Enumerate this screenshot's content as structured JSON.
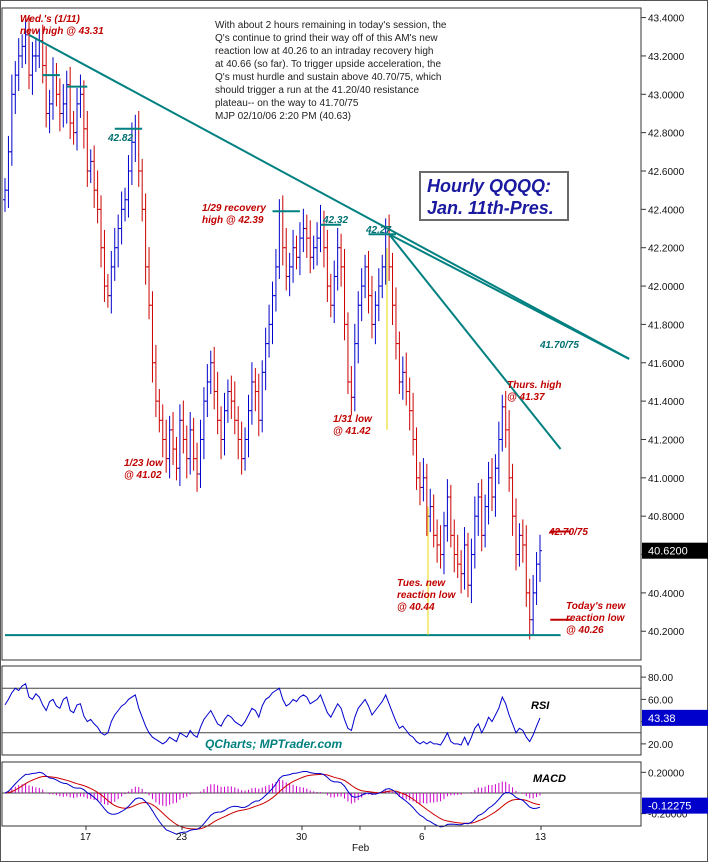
{
  "commentary": [
    "With about 2 hours remaining in today's session, the",
    "Q's continue to grind their way off of this AM's new",
    "reaction low at 40.26 to an intraday recovery high",
    "at 40.66 (so far). To trigger upside acceleration, the",
    "Q's must hurdle and sustain above 40.70/75, which",
    "should trigger a run at the 41.20/40 resistance",
    "plateau-- on the way to 41.70/75",
    "MJP  02/10/06  2:20 PM  (40.63)"
  ],
  "title_box": [
    "Hourly QQQQ:",
    "Jan. 11th-Pres."
  ],
  "watermark": "QCharts; MPTrader.com",
  "colors": {
    "up": "#0000cc",
    "down": "#cc0000",
    "trend": "#008080",
    "rsi": "#0000cc",
    "macd": "#0000cc",
    "signal": "#cc0000",
    "hist": "#cc00cc",
    "price_box": "#0000cc"
  },
  "chart_data": [
    {
      "type": "candlestick",
      "y_axis_labels": [
        "43.4000",
        "43.2000",
        "43.0000",
        "42.8000",
        "42.6000",
        "42.4000",
        "42.2000",
        "42.0000",
        "41.8000",
        "41.6000",
        "41.4000",
        "41.2000",
        "41.0000",
        "40.8000",
        "40.6000",
        "40.4000",
        "40.2000"
      ],
      "ylim": [
        40.05,
        43.45
      ],
      "x_tick_labels": [
        "17",
        "23",
        "30",
        "Feb",
        "6",
        "13"
      ],
      "last_price": "40.6200",
      "series_close": [
        42.5,
        42.7,
        43.0,
        43.1,
        43.2,
        43.25,
        43.31,
        43.1,
        43.2,
        43.2,
        43.28,
        43.15,
        42.9,
        42.95,
        43.1,
        43.0,
        42.9,
        42.95,
        43.05,
        42.85,
        42.8,
        42.95,
        43.0,
        42.82,
        42.6,
        42.65,
        42.5,
        42.4,
        42.2,
        42.0,
        41.95,
        42.1,
        42.2,
        42.3,
        42.4,
        42.45,
        42.6,
        42.75,
        42.82,
        42.6,
        42.4,
        42.1,
        41.9,
        41.6,
        41.4,
        41.3,
        41.2,
        41.1,
        41.25,
        41.15,
        41.05,
        41.3,
        41.2,
        41.1,
        41.25,
        41.1,
        41.02,
        41.2,
        41.4,
        41.5,
        41.6,
        41.45,
        41.3,
        41.2,
        41.35,
        41.45,
        41.4,
        41.3,
        41.2,
        41.1,
        41.2,
        41.35,
        41.5,
        41.45,
        41.3,
        41.55,
        41.7,
        41.8,
        41.95,
        42.1,
        42.39,
        42.2,
        42.05,
        42.1,
        42.2,
        42.15,
        42.25,
        42.3,
        42.25,
        42.15,
        42.2,
        42.25,
        42.32,
        42.2,
        42.0,
        41.9,
        42.05,
        42.2,
        42.1,
        41.8,
        41.5,
        41.42,
        41.7,
        41.9,
        42.0,
        42.1,
        41.95,
        41.8,
        41.9,
        42.0,
        42.1,
        42.27,
        42.1,
        41.9,
        41.7,
        41.5,
        41.55,
        41.45,
        41.35,
        41.2,
        41.0,
        40.95,
        41.0,
        40.8,
        40.85,
        40.7,
        40.65,
        40.6,
        40.75,
        40.9,
        40.7,
        40.6,
        40.55,
        40.5,
        40.65,
        40.44,
        40.6,
        40.8,
        40.9,
        40.7,
        40.85,
        41.0,
        40.9,
        41.05,
        41.2,
        41.37,
        41.25,
        41.0,
        40.8,
        40.6,
        40.7,
        40.65,
        40.4,
        40.26,
        40.4,
        40.55,
        40.62
      ],
      "series_range": [
        0.12
      ],
      "trendlines": [
        {
          "from": [
            7,
            43.31
          ],
          "to": [
            182,
            41.62
          ]
        },
        {
          "from": [
            112,
            42.27
          ],
          "to": [
            182,
            41.62
          ]
        },
        {
          "from": [
            112,
            42.27
          ],
          "to": [
            162,
            41.15
          ]
        }
      ],
      "levels": [
        {
          "value": 40.18,
          "from": 0,
          "to": 162
        },
        {
          "value": 43.1,
          "from": 11,
          "to": 16
        },
        {
          "value": 43.04,
          "from": 18,
          "to": 24
        },
        {
          "value": 42.82,
          "from": 32,
          "to": 40
        },
        {
          "value": 42.39,
          "from": 78,
          "to": 86
        },
        {
          "value": 42.32,
          "from": 92,
          "to": 98
        },
        {
          "value": 42.27,
          "from": 106,
          "to": 114
        },
        {
          "value": 40.72,
          "from": 159,
          "to": 165
        },
        {
          "value": 40.26,
          "from": 159,
          "to": 165
        }
      ],
      "annotations": [
        {
          "lines": [
            "Wed.'s (1/11)",
            "new high @ 43.31"
          ],
          "color": "red"
        },
        {
          "lines": [
            "42.82"
          ],
          "color": "teal"
        },
        {
          "lines": [
            "1/29 recovery",
            "high @ 42.39"
          ],
          "color": "red"
        },
        {
          "lines": [
            "42.32"
          ],
          "color": "teal"
        },
        {
          "lines": [
            "42.27"
          ],
          "color": "teal"
        },
        {
          "lines": [
            "41.70/75"
          ],
          "color": "teal"
        },
        {
          "lines": [
            "Thurs. high",
            "@ 41.37"
          ],
          "color": "red"
        },
        {
          "lines": [
            "1/31 low",
            "@ 41.42"
          ],
          "color": "red"
        },
        {
          "lines": [
            "1/23  low",
            "@ 41.02"
          ],
          "color": "red"
        },
        {
          "lines": [
            "42.70/75"
          ],
          "color": "red"
        },
        {
          "lines": [
            "Tues. new",
            "reaction low",
            "@ 40.44"
          ],
          "color": "red"
        },
        {
          "lines": [
            "Today's new",
            "reaction low",
            "@ 40.26"
          ],
          "color": "red"
        }
      ]
    },
    {
      "type": "line",
      "name": "RSI",
      "y_axis_labels": [
        "80.00",
        "60.00",
        "40.00",
        "20.00"
      ],
      "ylim": [
        10,
        90
      ],
      "last_value": "43.38",
      "series": [
        55,
        60,
        66,
        70,
        68,
        72,
        74,
        62,
        60,
        65,
        62,
        55,
        50,
        58,
        60,
        54,
        52,
        60,
        62,
        50,
        48,
        55,
        56,
        45,
        40,
        42,
        38,
        35,
        30,
        28,
        30,
        40,
        46,
        50,
        54,
        56,
        60,
        62,
        64,
        52,
        44,
        36,
        30,
        26,
        24,
        22,
        20,
        22,
        26,
        24,
        22,
        30,
        28,
        26,
        32,
        28,
        26,
        35,
        42,
        46,
        50,
        44,
        38,
        36,
        42,
        46,
        44,
        40,
        38,
        36,
        40,
        46,
        52,
        50,
        44,
        54,
        60,
        62,
        66,
        68,
        70,
        60,
        54,
        56,
        60,
        58,
        62,
        64,
        62,
        56,
        58,
        60,
        64,
        56,
        48,
        44,
        50,
        56,
        52,
        42,
        34,
        32,
        44,
        52,
        56,
        60,
        54,
        46,
        50,
        54,
        58,
        64,
        56,
        48,
        40,
        34,
        36,
        32,
        28,
        26,
        22,
        20,
        22,
        20,
        22,
        20,
        20,
        19,
        24,
        30,
        22,
        20,
        20,
        19,
        26,
        19,
        26,
        34,
        38,
        30,
        36,
        44,
        40,
        46,
        52,
        62,
        56,
        46,
        38,
        30,
        34,
        32,
        26,
        22,
        28,
        36,
        43.38
      ]
    },
    {
      "type": "line",
      "name": "MACD",
      "y_axis_labels": [
        "0.20000",
        "-0.20000"
      ],
      "ylim": [
        -0.32,
        0.3
      ],
      "last_value": "-0.12275"
    }
  ]
}
